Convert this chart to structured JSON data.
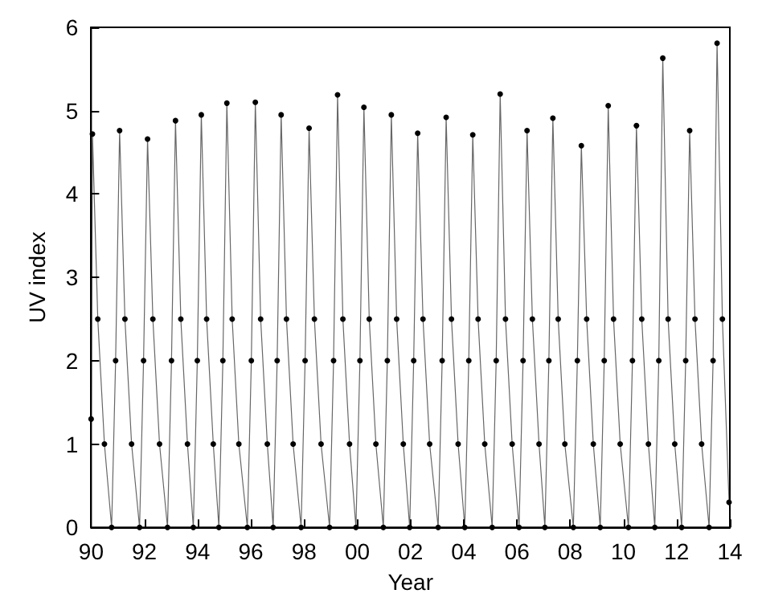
{
  "chart_data": {
    "type": "line",
    "xlabel": "Year",
    "ylabel": "UV index",
    "xlim": [
      1990,
      2014
    ],
    "ylim": [
      0,
      6
    ],
    "xticks": [
      {
        "value": 1990,
        "label": "90"
      },
      {
        "value": 1992,
        "label": "92"
      },
      {
        "value": 1994,
        "label": "94"
      },
      {
        "value": 1996,
        "label": "96"
      },
      {
        "value": 1998,
        "label": "98"
      },
      {
        "value": 2000,
        "label": "00"
      },
      {
        "value": 2002,
        "label": "02"
      },
      {
        "value": 2004,
        "label": "04"
      },
      {
        "value": 2006,
        "label": "06"
      },
      {
        "value": 2008,
        "label": "08"
      },
      {
        "value": 2010,
        "label": "10"
      },
      {
        "value": 2012,
        "label": "12"
      },
      {
        "value": 2014,
        "label": "14"
      }
    ],
    "yticks": [
      0,
      1,
      2,
      3,
      4,
      5,
      6
    ],
    "grid": false,
    "marker": "circle",
    "line_style": "solid",
    "series": [
      {
        "color": "#000000",
        "x": [
          1990.0,
          1990.05,
          1990.25,
          1990.5,
          1990.77,
          1990.92,
          1991.07,
          1991.27,
          1991.52,
          1991.82,
          1991.97,
          1992.12,
          1992.32,
          1992.57,
          1992.87,
          1993.02,
          1993.17,
          1993.37,
          1993.62,
          1993.84,
          1993.99,
          1994.14,
          1994.34,
          1994.59,
          1994.8,
          1994.95,
          1995.1,
          1995.3,
          1995.55,
          1995.87,
          1996.02,
          1996.17,
          1996.37,
          1996.62,
          1996.84,
          1996.99,
          1997.14,
          1997.34,
          1997.59,
          1997.89,
          1998.04,
          1998.19,
          1998.39,
          1998.64,
          1998.96,
          1999.11,
          1999.26,
          1999.46,
          1999.71,
          1999.95,
          2000.1,
          2000.25,
          2000.45,
          2000.7,
          2000.98,
          2001.13,
          2001.28,
          2001.48,
          2001.73,
          2001.97,
          2002.12,
          2002.27,
          2002.47,
          2002.72,
          2003.04,
          2003.19,
          2003.34,
          2003.54,
          2003.79,
          2004.04,
          2004.19,
          2004.34,
          2004.54,
          2004.79,
          2005.07,
          2005.22,
          2005.37,
          2005.57,
          2005.82,
          2006.08,
          2006.23,
          2006.38,
          2006.58,
          2006.83,
          2007.05,
          2007.2,
          2007.35,
          2007.55,
          2007.8,
          2008.12,
          2008.27,
          2008.42,
          2008.62,
          2008.87,
          2009.13,
          2009.28,
          2009.43,
          2009.63,
          2009.88,
          2010.19,
          2010.34,
          2010.49,
          2010.69,
          2010.94,
          2011.18,
          2011.33,
          2011.48,
          2011.68,
          2011.93,
          2012.19,
          2012.34,
          2012.49,
          2012.69,
          2012.94,
          2013.22,
          2013.37,
          2013.52,
          2013.72,
          2013.97
        ],
        "values": [
          1.3,
          4.72,
          2.5,
          1.0,
          0,
          2.0,
          4.76,
          2.5,
          1.0,
          0,
          2.0,
          4.66,
          2.5,
          1.0,
          0,
          2.0,
          4.88,
          2.5,
          1.0,
          0,
          2.0,
          4.95,
          2.5,
          1.0,
          0,
          2.0,
          5.09,
          2.5,
          1.0,
          0,
          2.0,
          5.1,
          2.5,
          1.0,
          0,
          2.0,
          4.95,
          2.5,
          1.0,
          0,
          2.0,
          4.79,
          2.5,
          1.0,
          0,
          2.0,
          5.19,
          2.5,
          1.0,
          0,
          2.0,
          5.04,
          2.5,
          1.0,
          0,
          2.0,
          4.95,
          2.5,
          1.0,
          0,
          2.0,
          4.73,
          2.5,
          1.0,
          0,
          2.0,
          4.92,
          2.5,
          1.0,
          0,
          2.0,
          4.71,
          2.5,
          1.0,
          0,
          2.0,
          5.2,
          2.5,
          1.0,
          0,
          2.0,
          4.76,
          2.5,
          1.0,
          0,
          2.0,
          4.91,
          2.5,
          1.0,
          0,
          2.0,
          4.58,
          2.5,
          1.0,
          0,
          2.0,
          5.06,
          2.5,
          1.0,
          0,
          2.0,
          4.82,
          2.5,
          1.0,
          0,
          2.0,
          5.63,
          2.5,
          1.0,
          0,
          2.0,
          4.76,
          2.5,
          1.0,
          0,
          2.0,
          5.81,
          2.5,
          0.3
        ]
      }
    ]
  }
}
